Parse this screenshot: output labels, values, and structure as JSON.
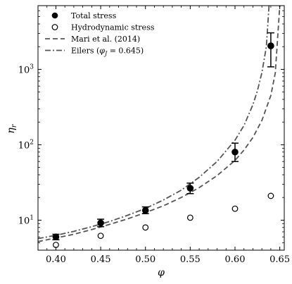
{
  "chart_data": {
    "type": "scatter",
    "xlabel": "φ",
    "ylabel": "η",
    "ylabel_sub": "r",
    "xlim": [
      0.38,
      0.655
    ],
    "ylim": [
      4,
      7000
    ],
    "yscale": "log",
    "grid": false,
    "legend_position": "top-left",
    "x_ticks": [
      0.4,
      0.45,
      0.5,
      0.55,
      0.6,
      0.65
    ],
    "x_tick_labels": [
      "0.40",
      "0.45",
      "0.50",
      "0.55",
      "0.60",
      "0.65"
    ],
    "y_ticks": [
      10,
      100,
      1000
    ],
    "y_tick_bases": [
      "10",
      "10",
      "10"
    ],
    "y_tick_exps": [
      "1",
      "2",
      "3"
    ],
    "series": [
      {
        "name": "Total stress",
        "marker": "filled-circle",
        "color": "#000000",
        "x": [
          0.4,
          0.45,
          0.5,
          0.55,
          0.6,
          0.64
        ],
        "y": [
          6.0,
          9.2,
          13.5,
          26.5,
          80,
          2050
        ],
        "yerr_low": [
          5.5,
          8.2,
          12.2,
          22.5,
          60,
          1080
        ],
        "yerr_high": [
          6.5,
          10.3,
          15.0,
          31.0,
          105,
          3050
        ]
      },
      {
        "name": "Hydrodynamic stress",
        "marker": "open-circle",
        "color": "#000000",
        "x": [
          0.4,
          0.45,
          0.5,
          0.55,
          0.6,
          0.64
        ],
        "y": [
          4.7,
          6.2,
          8.0,
          10.8,
          14.2,
          21.0
        ]
      },
      {
        "name": "Mari et al. (2014)",
        "line": "dashed",
        "color": "#555555",
        "x": [
          0.38,
          0.4,
          0.42,
          0.44,
          0.46,
          0.48,
          0.5,
          0.52,
          0.54,
          0.56,
          0.58,
          0.6,
          0.61,
          0.62,
          0.63,
          0.64,
          0.645,
          0.65
        ],
        "y": [
          5.2,
          5.8,
          6.5,
          7.5,
          8.8,
          10.4,
          12.6,
          15.5,
          20.0,
          27.0,
          39.0,
          62.0,
          85.0,
          125.0,
          210.0,
          450.0,
          900.0,
          7000.0
        ]
      },
      {
        "name": "Eilers (φ_J = 0.645)",
        "line": "dashdot",
        "color": "#555555",
        "x": [
          0.38,
          0.4,
          0.42,
          0.44,
          0.46,
          0.48,
          0.5,
          0.52,
          0.54,
          0.56,
          0.58,
          0.6,
          0.61,
          0.62,
          0.625,
          0.63,
          0.635,
          0.638
        ],
        "y": [
          5.7,
          6.3,
          7.1,
          8.2,
          9.6,
          11.6,
          14.3,
          18.5,
          25.0,
          37.0,
          60.0,
          115.0,
          180.0,
          340.0,
          520.0,
          900.0,
          2000.0,
          7000.0
        ]
      }
    ],
    "legend": [
      {
        "label": "Total stress",
        "symbol": "filled-circle"
      },
      {
        "label": "Hydrodynamic stress",
        "symbol": "open-circle"
      },
      {
        "label": "Mari et al. (2014)",
        "symbol": "dashed"
      },
      {
        "label_prefix": "Eilers (",
        "label_var": "φ",
        "label_sub": "J",
        "label_suffix": " = 0.645)",
        "symbol": "dashdot"
      }
    ]
  }
}
